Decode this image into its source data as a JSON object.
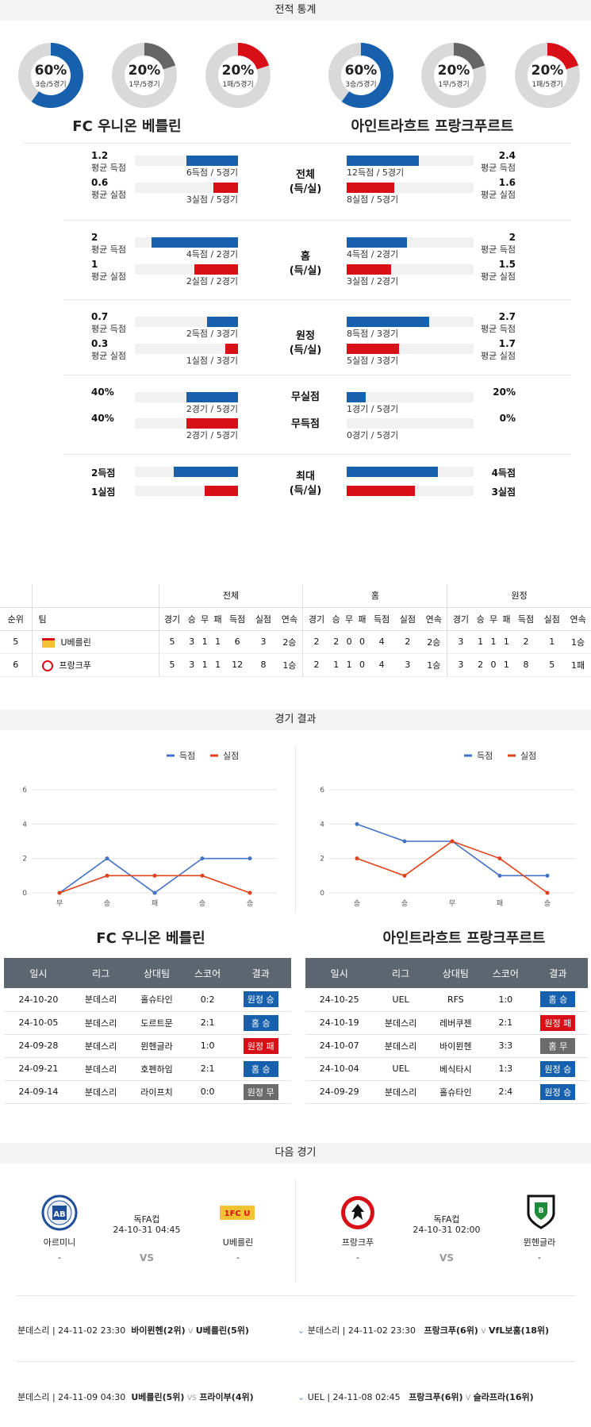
{
  "sections": {
    "stats": "전적 통계",
    "results": "경기 결과",
    "next": "다음 경기"
  },
  "teams": {
    "home": "FC 우니온 베를린",
    "away": "아인트라흐트 프랑크푸르트"
  },
  "donuts": [
    {
      "pct": "60%",
      "sub": "3승/5경기",
      "value": 0.6,
      "color": "#1760ad"
    },
    {
      "pct": "20%",
      "sub": "1무/5경기",
      "value": 0.2,
      "color": "#666666"
    },
    {
      "pct": "20%",
      "sub": "1패/5경기",
      "value": 0.2,
      "color": "#d80f17"
    },
    {
      "pct": "60%",
      "sub": "3승/5경기",
      "value": 0.6,
      "color": "#1760ad"
    },
    {
      "pct": "20%",
      "sub": "1무/5경기",
      "value": 0.2,
      "color": "#666666"
    },
    {
      "pct": "20%",
      "sub": "1패/5경기",
      "value": 0.2,
      "color": "#d80f17"
    }
  ],
  "groups": [
    {
      "mid": [
        "전체",
        "(득/실)"
      ],
      "rows": [
        {
          "l_val": "1.2",
          "l_lbl": "평균 득점",
          "l_cnt": "6득점 / 5경기",
          "l_frac": 0.25,
          "r_val": "2.4",
          "r_lbl": "평균 득점",
          "r_cnt": "12득점 / 5경기",
          "r_frac": 0.5
        },
        {
          "l_val": "0.6",
          "l_lbl": "평균 실점",
          "l_cnt": "3실점 / 5경기",
          "l_frac": 0.12,
          "r_val": "1.6",
          "r_lbl": "평균 실점",
          "r_cnt": "8실점 / 5경기",
          "r_frac": 0.33
        }
      ]
    },
    {
      "mid": [
        "홈",
        "(득/실)"
      ],
      "rows": [
        {
          "l_val": "2",
          "l_lbl": "평균 득점",
          "l_cnt": "4득점 / 2경기",
          "l_frac": 0.42,
          "r_val": "2",
          "r_lbl": "평균 득점",
          "r_cnt": "4득점 / 2경기",
          "r_frac": 0.42
        },
        {
          "l_val": "1",
          "l_lbl": "평균 실점",
          "l_cnt": "2실점 / 2경기",
          "l_frac": 0.21,
          "r_val": "1.5",
          "r_lbl": "평균 실점",
          "r_cnt": "3실점 / 2경기",
          "r_frac": 0.31
        }
      ]
    },
    {
      "mid": [
        "원정",
        "(득/실)"
      ],
      "rows": [
        {
          "l_val": "0.7",
          "l_lbl": "평균 득점",
          "l_cnt": "2득점 / 3경기",
          "l_frac": 0.15,
          "r_val": "2.7",
          "r_lbl": "평균 득점",
          "r_cnt": "8득점 / 3경기",
          "r_frac": 0.57
        },
        {
          "l_val": "0.3",
          "l_lbl": "평균 실점",
          "l_cnt": "1실점 / 3경기",
          "l_frac": 0.06,
          "r_val": "1.7",
          "r_lbl": "평균 실점",
          "r_cnt": "5실점 / 3경기",
          "r_frac": 0.36
        }
      ]
    },
    {
      "mid": [
        "무실점",
        "무득점"
      ],
      "rows": [
        {
          "l_val": "40%",
          "l_lbl": "",
          "l_cnt": "2경기 / 5경기",
          "l_frac": 0.25,
          "r_val": "20%",
          "r_lbl": "",
          "r_cnt": "1경기 / 5경기",
          "r_frac": 0.13
        },
        {
          "l_val": "40%",
          "l_lbl": "",
          "l_cnt": "2경기 / 5경기",
          "l_frac": 0.25,
          "r_val": "0%",
          "r_lbl": "",
          "r_cnt": "0경기 / 5경기",
          "r_frac": 0
        }
      ]
    },
    {
      "mid": [
        "최대",
        "(득/실)"
      ],
      "rows": [
        {
          "l_val": "2득점",
          "l_lbl": "",
          "l_cnt": "",
          "l_frac": 0.31,
          "r_val": "4득점",
          "r_lbl": "",
          "r_cnt": "",
          "r_frac": 0.63
        },
        {
          "l_val": "1실점",
          "l_lbl": "",
          "l_cnt": "",
          "l_frac": 0.16,
          "r_val": "3실점",
          "r_lbl": "",
          "r_cnt": "",
          "r_frac": 0.47
        }
      ]
    }
  ],
  "standings": {
    "groups": [
      "전체",
      "홈",
      "원정"
    ],
    "cols": [
      "순위",
      "팀",
      "경기",
      "승",
      "무",
      "패",
      "득점",
      "실점",
      "연속",
      "경기",
      "승",
      "무",
      "패",
      "득점",
      "실점",
      "연속",
      "경기",
      "승",
      "무",
      "패",
      "득점",
      "실점",
      "연속"
    ],
    "rows": [
      [
        "5",
        "U베를린",
        "5",
        "3",
        "1",
        "1",
        "6",
        "3",
        "2승",
        "2",
        "2",
        "0",
        "0",
        "4",
        "2",
        "2승",
        "3",
        "1",
        "1",
        "1",
        "2",
        "1",
        "1승"
      ],
      [
        "6",
        "프랑크푸",
        "5",
        "3",
        "1",
        "1",
        "12",
        "8",
        "1승",
        "2",
        "1",
        "1",
        "0",
        "4",
        "3",
        "1승",
        "3",
        "2",
        "0",
        "1",
        "8",
        "5",
        "1패"
      ]
    ]
  },
  "chart_data": [
    {
      "type": "line",
      "x": [
        "무",
        "승",
        "패",
        "승",
        "승"
      ],
      "ylim": [
        0,
        6
      ],
      "yticks": [
        "0",
        "2",
        "4",
        "6"
      ],
      "legend_position": "top-right",
      "series": [
        {
          "name": "득점",
          "color": "#4472c4",
          "values": [
            0,
            2,
            0,
            2,
            2
          ]
        },
        {
          "name": "실점",
          "color": "#e0421a",
          "values": [
            0,
            1,
            1,
            1,
            0
          ]
        }
      ]
    },
    {
      "type": "line",
      "x": [
        "승",
        "승",
        "무",
        "패",
        "승"
      ],
      "ylim": [
        0,
        6
      ],
      "yticks": [
        "0",
        "2",
        "4",
        "6"
      ],
      "legend_position": "top-right",
      "series": [
        {
          "name": "득점",
          "color": "#4472c4",
          "values": [
            4,
            3,
            3,
            1,
            1
          ]
        },
        {
          "name": "실점",
          "color": "#e0421a",
          "values": [
            2,
            1,
            3,
            2,
            0
          ]
        }
      ]
    }
  ],
  "results": {
    "headers": [
      "일시",
      "리그",
      "상대팀",
      "스코어",
      "결과"
    ],
    "home": [
      [
        "24-10-20",
        "분데스리",
        "홀슈타인",
        "0:2",
        "원정 승",
        "blue"
      ],
      [
        "24-10-05",
        "분데스리",
        "도르트문",
        "2:1",
        "홈 승",
        "blue"
      ],
      [
        "24-09-28",
        "분데스리",
        "뮌헨글라",
        "1:0",
        "원정 패",
        "red"
      ],
      [
        "24-09-21",
        "분데스리",
        "호펜하임",
        "2:1",
        "홈 승",
        "blue"
      ],
      [
        "24-09-14",
        "분데스리",
        "라이프치",
        "0:0",
        "원정 무",
        "gray"
      ]
    ],
    "away": [
      [
        "24-10-25",
        "UEL",
        "RFS",
        "1:0",
        "홈 승",
        "blue"
      ],
      [
        "24-10-19",
        "분데스리",
        "레버쿠젠",
        "2:1",
        "원정 패",
        "red"
      ],
      [
        "24-10-07",
        "분데스리",
        "바이뮌헨",
        "3:3",
        "홈 무",
        "gray"
      ],
      [
        "24-10-04",
        "UEL",
        "베식타시",
        "1:3",
        "원정 승",
        "blue"
      ],
      [
        "24-09-29",
        "분데스리",
        "홀슈타인",
        "2:4",
        "원정 승",
        "blue"
      ]
    ]
  },
  "next": [
    {
      "league": "독FA컵",
      "date": "24-10-31 04:45",
      "team1": "아르미니",
      "team2": "U베를린",
      "score1": "-",
      "score2": "-",
      "vs": "VS"
    },
    {
      "league": "독FA컵",
      "date": "24-10-31 02:00",
      "team1": "프랑크푸",
      "team2": "뮌헨글라",
      "score1": "-",
      "score2": "-",
      "vs": "VS"
    }
  ],
  "upcoming": [
    {
      "left": "분데스리 | 24-11-02 23:30",
      "t1": "바이뮌헨(2위)",
      "v": "V",
      "t2": "U베를린(5위)",
      "right": "분데스리 | 24-11-02 23:30",
      "r1": "프랑크푸(6위)",
      "rv": "V",
      "r2": "VfL보훔(18위)"
    },
    {
      "left": "분데스리 | 24-11-09 04:30",
      "t1": "U베를린(5위)",
      "v": "VS",
      "t2": "프라이부(4위)",
      "right": "UEL | 24-11-08 02:45",
      "r1": "프랑크푸(6위)",
      "rv": "V",
      "r2": "슬라프라(16위)"
    }
  ]
}
